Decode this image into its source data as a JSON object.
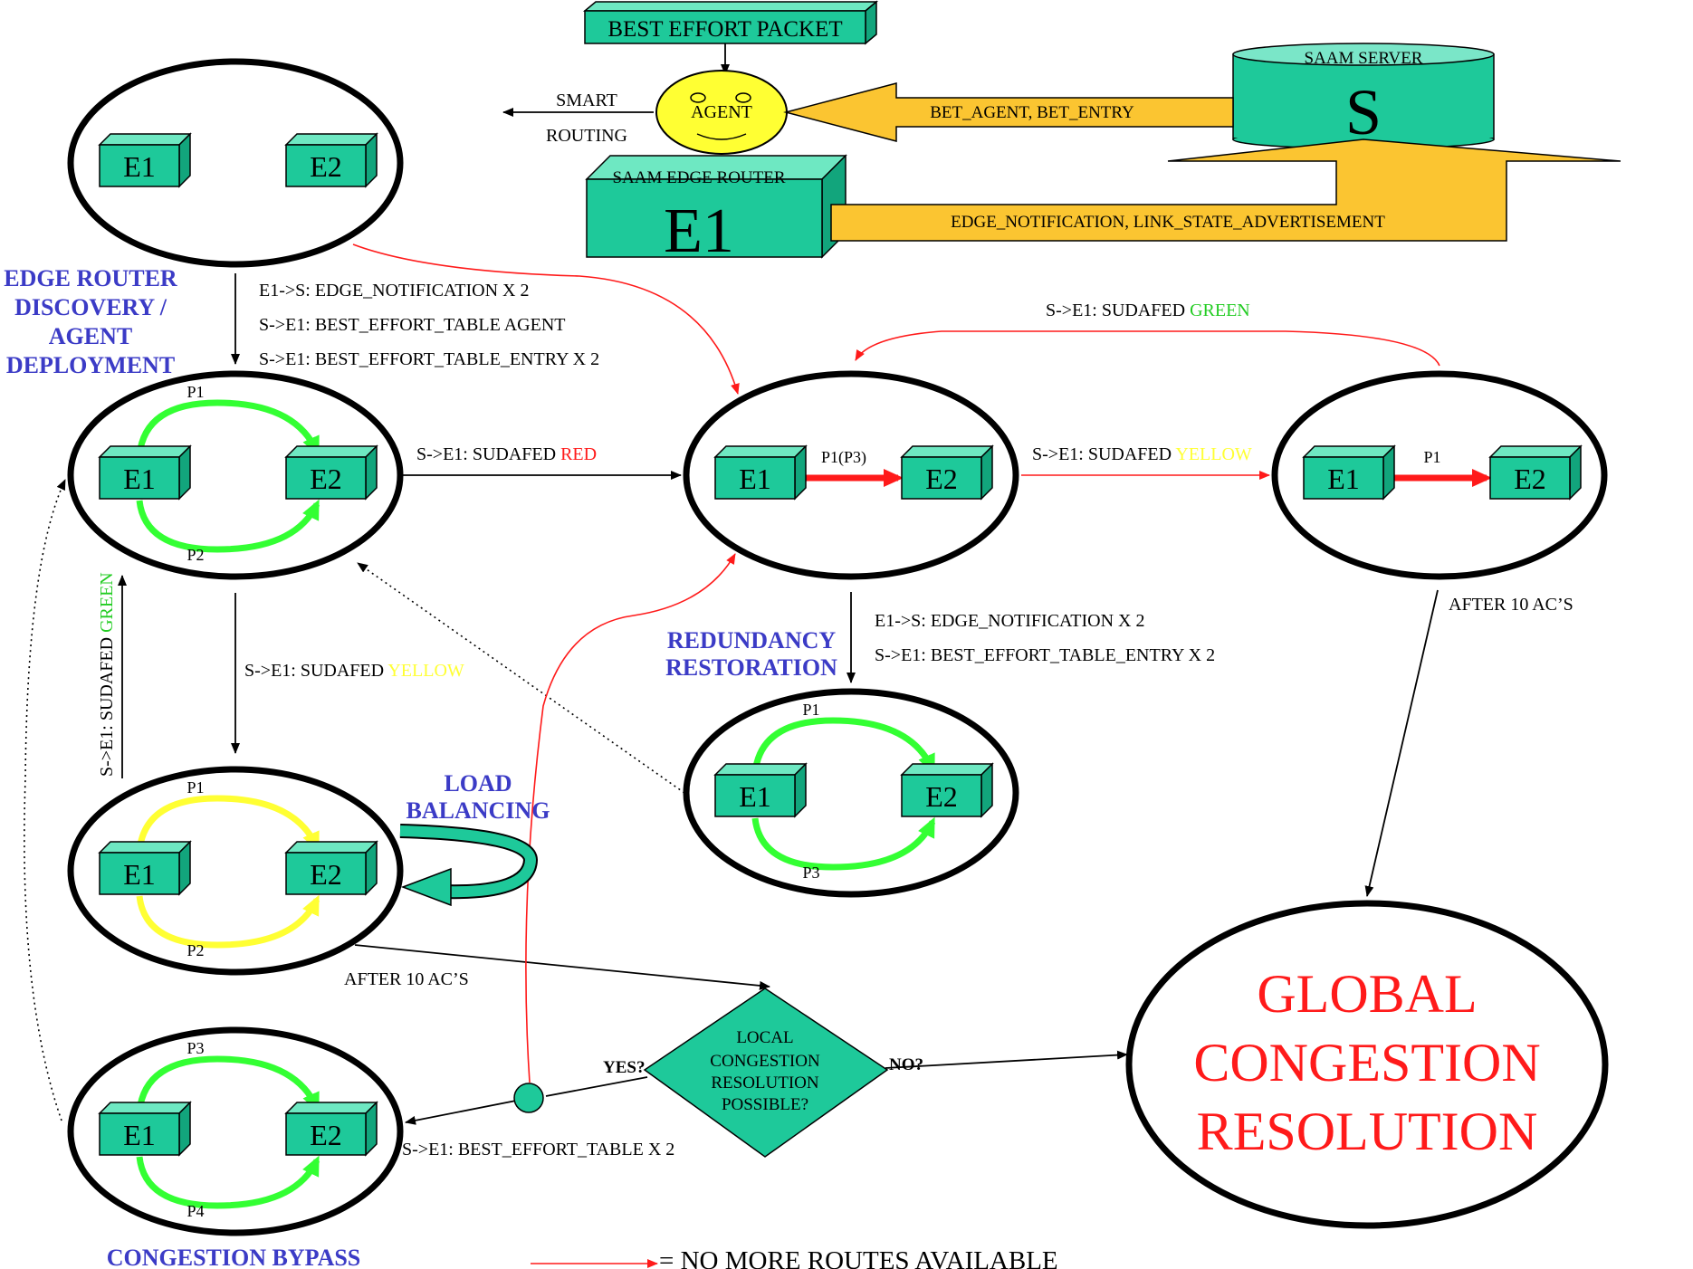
{
  "header": {
    "best_effort_packet": "BEST EFFORT PACKET",
    "agent": "AGENT",
    "smart": "SMART",
    "routing": "ROUTING",
    "saam_server": "SAAM SERVER",
    "server_letter": "S",
    "saam_edge_router": "SAAM EDGE ROUTER",
    "edge_router_letter": "E1",
    "bet_arrow": "BET_AGENT, BET_ENTRY",
    "edge_arrow": "EDGE_NOTIFICATION, LINK_STATE_ADVERTISEMENT"
  },
  "boxes": {
    "e1": "E1",
    "e2": "E2"
  },
  "paths": {
    "p1": "P1",
    "p2": "P2",
    "p3": "P3",
    "p4": "P4",
    "p1p3": "P1(P3)"
  },
  "sections": {
    "discovery": [
      "EDGE ROUTER",
      "DISCOVERY /",
      "AGENT",
      "DEPLOYMENT"
    ],
    "load_balancing": [
      "LOAD",
      "BALANCING"
    ],
    "redundancy": [
      "REDUNDANCY",
      "RESTORATION"
    ],
    "congestion_bypass": "CONGESTION BYPASS"
  },
  "messages": {
    "discovery_1": "E1->S: EDGE_NOTIFICATION X 2",
    "discovery_2": "S->E1: BEST_EFFORT_TABLE AGENT",
    "discovery_3": "S->E1: BEST_EFFORT_TABLE_ENTRY X 2",
    "sudafed_prefix": "S->E1: SUDAFED ",
    "red": "RED",
    "yellow": "YELLOW",
    "green": "GREEN",
    "vertical_green_prefix": "S->E1: SUDAFED ",
    "redundancy_1": "E1->S: EDGE_NOTIFICATION X 2",
    "redundancy_2": "S->E1: BEST_EFFORT_TABLE_ENTRY X 2",
    "after_10_acs": "AFTER 10 AC’S",
    "best_effort_table_x2": "S->E1: BEST_EFFORT_TABLE X 2"
  },
  "decision": {
    "lines": [
      "LOCAL",
      "CONGESTION",
      "RESOLUTION",
      "POSSIBLE?"
    ],
    "yes": "YES?",
    "no": "NO?"
  },
  "global": [
    "GLOBAL",
    "CONGESTION",
    "RESOLUTION"
  ],
  "legend": "= NO MORE ROUTES AVAILABLE",
  "colors": {
    "box": "#1ec99a",
    "green_path": "#33ff33",
    "yellow_path": "#ffff33",
    "red_path": "#ff1a1a",
    "orange_arrow": "#fbc531",
    "agent_face": "#ffff33",
    "section_blue": "#3b3bc6",
    "global_red": "#ff1a1a"
  }
}
